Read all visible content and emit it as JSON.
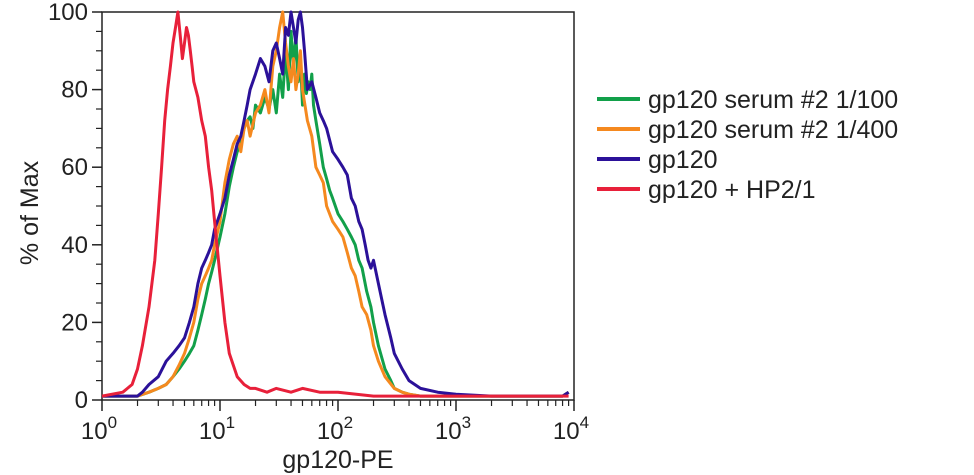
{
  "chart_data": {
    "type": "line",
    "title": "",
    "xlabel": "gp120-PE",
    "ylabel": "% of Max",
    "xscale": "log",
    "xlim": [
      1,
      10000
    ],
    "ylim": [
      0,
      100
    ],
    "grid": false,
    "legend_position": "right",
    "x_ticks": [
      {
        "value": 1,
        "base": "10",
        "exp": "0"
      },
      {
        "value": 10,
        "base": "10",
        "exp": "1"
      },
      {
        "value": 100,
        "base": "10",
        "exp": "2"
      },
      {
        "value": 1000,
        "base": "10",
        "exp": "3"
      },
      {
        "value": 10000,
        "base": "10",
        "exp": "4"
      }
    ],
    "y_ticks": [
      "0",
      "20",
      "40",
      "60",
      "80",
      "100"
    ],
    "series": [
      {
        "name": "gp120 serum #2 1/100",
        "color": "#12a04a",
        "x": [
          1,
          1.5,
          2,
          2.5,
          3,
          3.5,
          4,
          4.5,
          5,
          5.5,
          6,
          6.5,
          7,
          7.5,
          8,
          8.5,
          9,
          10,
          11,
          12,
          13,
          14,
          15,
          16,
          17,
          18,
          19,
          20,
          22,
          24,
          26,
          28,
          30,
          32,
          34,
          36,
          38,
          40,
          42,
          44,
          46,
          48,
          50,
          52,
          54,
          56,
          58,
          60,
          62,
          65,
          70,
          75,
          80,
          85,
          90,
          100,
          110,
          120,
          130,
          140,
          150,
          160,
          175,
          190,
          200,
          220,
          250,
          280,
          300,
          350,
          400,
          500,
          700,
          1000,
          2000,
          5000,
          8000,
          9000
        ],
        "y": [
          1,
          1,
          1,
          2,
          3,
          4,
          6,
          8,
          10,
          12,
          14,
          18,
          22,
          26,
          30,
          33,
          36,
          42,
          48,
          55,
          60,
          64,
          66,
          70,
          72,
          73,
          70,
          76,
          74,
          78,
          75,
          80,
          74,
          84,
          78,
          90,
          80,
          95,
          86,
          94,
          82,
          88,
          76,
          84,
          79,
          82,
          80,
          84,
          76,
          72,
          66,
          60,
          57,
          54,
          52,
          48,
          46,
          44,
          42,
          40,
          36,
          34,
          28,
          24,
          20,
          14,
          8,
          5,
          3,
          2,
          1.5,
          1,
          1,
          1,
          1,
          1,
          1,
          2
        ]
      },
      {
        "name": "gp120 serum #2 1/400",
        "color": "#f5891f",
        "x": [
          1,
          1.5,
          2,
          2.5,
          3,
          3.5,
          4,
          4.5,
          5,
          5.5,
          6,
          6.5,
          7,
          7.5,
          8,
          8.5,
          9,
          10,
          11,
          12,
          13,
          14,
          15,
          16,
          17,
          18,
          20,
          22,
          24,
          26,
          28,
          30,
          32,
          34,
          36,
          38,
          40,
          42,
          44,
          46,
          48,
          50,
          55,
          60,
          65,
          70,
          75,
          80,
          90,
          100,
          110,
          120,
          130,
          140,
          150,
          160,
          175,
          190,
          200,
          220,
          250,
          300,
          350,
          400,
          500,
          700,
          1000,
          2000,
          5000,
          8000,
          9000
        ],
        "y": [
          1,
          1,
          1,
          2,
          3,
          4,
          6,
          9,
          12,
          16,
          20,
          26,
          30,
          32,
          34,
          36,
          40,
          46,
          56,
          62,
          66,
          68,
          64,
          70,
          72,
          68,
          74,
          76,
          80,
          74,
          86,
          90,
          96,
          100,
          92,
          86,
          82,
          88,
          80,
          84,
          90,
          80,
          72,
          68,
          60,
          58,
          56,
          50,
          46,
          44,
          42,
          38,
          34,
          32,
          28,
          24,
          22,
          18,
          14,
          10,
          6,
          3,
          2,
          1.5,
          1,
          1,
          1,
          1,
          1,
          1,
          2
        ]
      },
      {
        "name": "gp120",
        "color": "#2b1199",
        "x": [
          1,
          1.5,
          2,
          2.2,
          2.5,
          3,
          3.5,
          4,
          4.5,
          5,
          5.5,
          6,
          6.5,
          7,
          7.5,
          8,
          8.5,
          9,
          10,
          11,
          12,
          13,
          14,
          15,
          16,
          17,
          18,
          20,
          22,
          24,
          26,
          28,
          30,
          32,
          34,
          36,
          38,
          40,
          42,
          44,
          46,
          48,
          50,
          52,
          55,
          60,
          65,
          70,
          75,
          80,
          90,
          100,
          110,
          120,
          130,
          140,
          150,
          160,
          170,
          180,
          190,
          200,
          220,
          250,
          280,
          300,
          350,
          400,
          500,
          700,
          1000,
          2000,
          5000,
          8000,
          9000
        ],
        "y": [
          1,
          1,
          1,
          2,
          4,
          6,
          10,
          12,
          14,
          16,
          20,
          24,
          30,
          34,
          36,
          38,
          40,
          44,
          48,
          52,
          58,
          62,
          66,
          68,
          72,
          76,
          80,
          84,
          88,
          86,
          82,
          90,
          92,
          88,
          84,
          96,
          94,
          100,
          96,
          92,
          98,
          100,
          96,
          90,
          80,
          82,
          78,
          74,
          72,
          70,
          64,
          62,
          60,
          58,
          52,
          50,
          46,
          44,
          40,
          36,
          34,
          36,
          30,
          22,
          16,
          12,
          8,
          5,
          3,
          2,
          1.5,
          1,
          1,
          1,
          2
        ]
      },
      {
        "name": "gp120 + HP2/1",
        "color": "#e8203a",
        "x": [
          1,
          1.5,
          1.8,
          2,
          2.2,
          2.5,
          2.8,
          3,
          3.2,
          3.4,
          3.6,
          3.8,
          4,
          4.2,
          4.4,
          4.6,
          4.8,
          5,
          5.2,
          5.4,
          5.6,
          5.8,
          6,
          6.5,
          7,
          7.5,
          8,
          8.5,
          9,
          10,
          11,
          12,
          14,
          16,
          18,
          20,
          25,
          30,
          40,
          50,
          70,
          100,
          200,
          500,
          1000,
          5000,
          9000
        ],
        "y": [
          1,
          2,
          4,
          8,
          14,
          24,
          36,
          48,
          60,
          72,
          80,
          86,
          92,
          96,
          100,
          94,
          88,
          92,
          96,
          94,
          90,
          86,
          82,
          78,
          72,
          68,
          60,
          54,
          46,
          32,
          20,
          12,
          6,
          4,
          3,
          3,
          2,
          3,
          2,
          3,
          2,
          2,
          1,
          1,
          1,
          1,
          1
        ]
      }
    ]
  }
}
